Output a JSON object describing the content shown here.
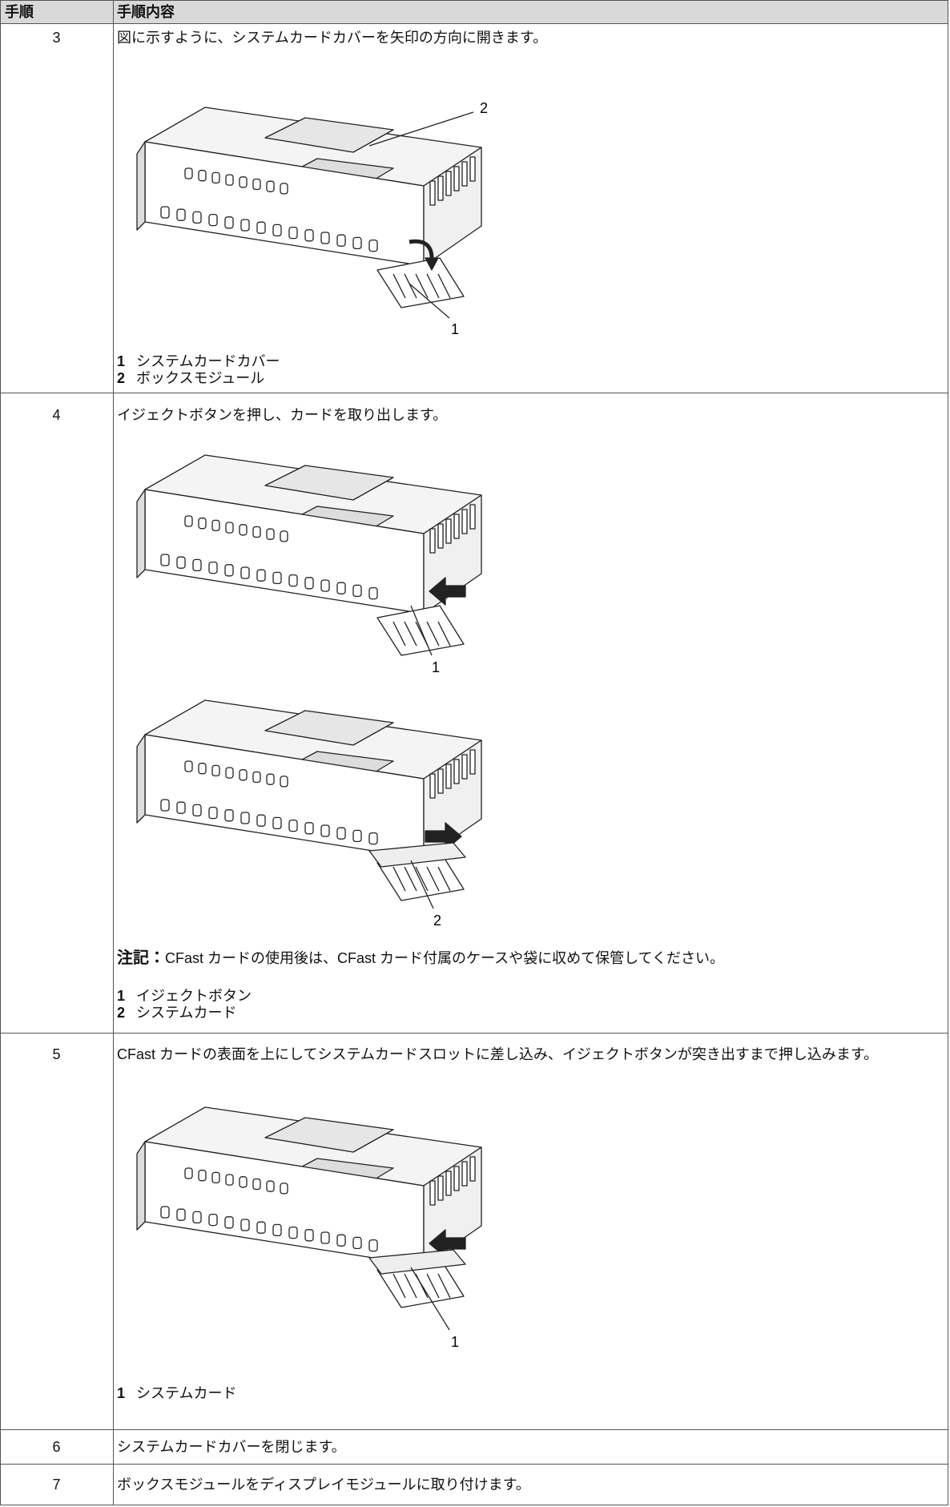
{
  "header": {
    "step": "手順",
    "content": "手順内容"
  },
  "rows": [
    {
      "step": "3",
      "text": "図に示すように、システムカードカバーを矢印の方向に開きます。",
      "figures": [
        {
          "callouts": [
            "2",
            "1"
          ]
        }
      ],
      "legend": [
        {
          "number": "1",
          "label": "システムカードカバー"
        },
        {
          "number": "2",
          "label": "ボックスモジュール"
        }
      ]
    },
    {
      "step": "4",
      "text": "イジェクトボタンを押し、カードを取り出します。",
      "figures": [
        {
          "callouts": [
            "1"
          ]
        },
        {
          "callouts": [
            "2"
          ]
        }
      ],
      "note": {
        "label": "注記：",
        "text": "CFast カードの使用後は、CFast カード付属のケースや袋に収めて保管してください。"
      },
      "legend": [
        {
          "number": "1",
          "label": "イジェクトボタン"
        },
        {
          "number": "2",
          "label": "システムカード"
        }
      ]
    },
    {
      "step": "5",
      "text": "CFast カードの表面を上にしてシステムカードスロットに差し込み、イジェクトボタンが突き出すまで押し込みます。",
      "figures": [
        {
          "callouts": [
            "1"
          ]
        }
      ],
      "legend": [
        {
          "number": "1",
          "label": "システムカード"
        }
      ]
    },
    {
      "step": "6",
      "text": "システムカードカバーを閉じます。"
    },
    {
      "step": "7",
      "text": "ボックスモジュールをディスプレイモジュールに取り付けます。"
    }
  ]
}
